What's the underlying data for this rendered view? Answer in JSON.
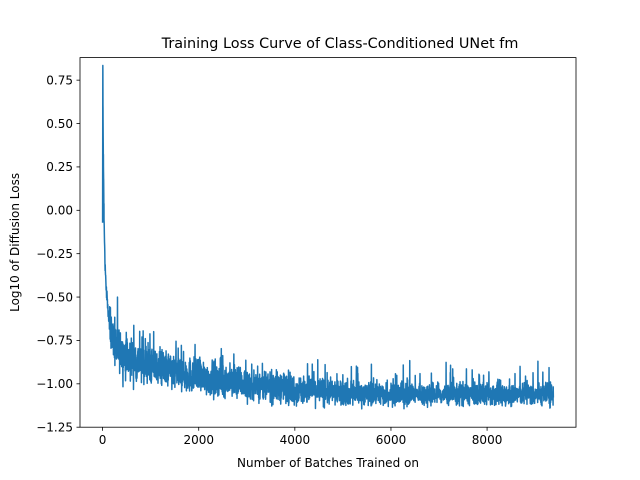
{
  "chart_data": {
    "type": "line",
    "title": "Training Loss Curve of Class-Conditioned UNet fm",
    "xlabel": "Number of Batches Trained on",
    "ylabel": "Log10 of Diffusion Loss",
    "xlim": [
      -470,
      9850
    ],
    "ylim": [
      -1.25,
      0.88
    ],
    "xticks": [
      0,
      2000,
      4000,
      6000,
      8000
    ],
    "xtick_labels": [
      "0",
      "2000",
      "4000",
      "6000",
      "8000"
    ],
    "yticks": [
      -1.25,
      -1.0,
      -0.75,
      -0.5,
      -0.25,
      0.0,
      0.25,
      0.5,
      0.75
    ],
    "ytick_labels": [
      "−1.25",
      "−1.00",
      "−0.75",
      "−0.50",
      "−0.25",
      "0.00",
      "0.25",
      "0.50",
      "0.75"
    ],
    "grid": false,
    "legend": "none",
    "series": [
      {
        "color": "#1f77b4",
        "x_start": 0,
        "x_end": 9380,
        "trend": [
          [
            0,
            -0.1
          ],
          [
            5,
            0.85
          ],
          [
            10,
            0.5
          ],
          [
            20,
            0.2
          ],
          [
            30,
            -0.05
          ],
          [
            50,
            -0.3
          ],
          [
            80,
            -0.48
          ],
          [
            120,
            -0.6
          ],
          [
            200,
            -0.72
          ],
          [
            300,
            -0.8
          ],
          [
            500,
            -0.84
          ],
          [
            800,
            -0.88
          ],
          [
            1000,
            -0.9
          ],
          [
            1500,
            -0.93
          ],
          [
            2000,
            -0.96
          ],
          [
            3000,
            -1.0
          ],
          [
            4000,
            -1.03
          ],
          [
            5000,
            -1.05
          ],
          [
            6000,
            -1.06
          ],
          [
            7000,
            -1.06
          ],
          [
            8000,
            -1.06
          ],
          [
            9380,
            -1.06
          ]
        ],
        "spread": [
          [
            0,
            0.0
          ],
          [
            200,
            0.09
          ],
          [
            1000,
            0.08
          ],
          [
            2000,
            0.07
          ],
          [
            4000,
            0.06
          ],
          [
            6000,
            0.045
          ],
          [
            8000,
            0.045
          ],
          [
            9380,
            0.045
          ]
        ]
      }
    ]
  }
}
